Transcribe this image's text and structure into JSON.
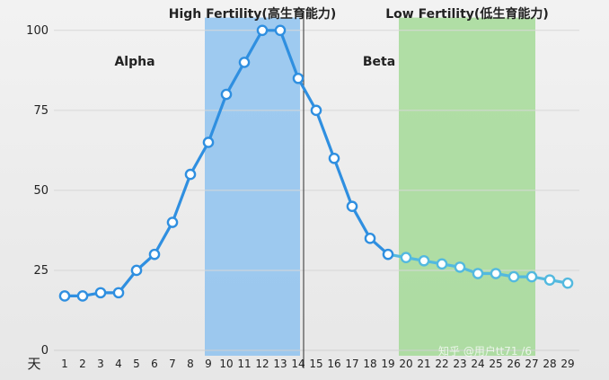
{
  "chart_data": {
    "type": "line",
    "x_unit_label": "天",
    "x": [
      1,
      2,
      3,
      4,
      5,
      6,
      7,
      8,
      9,
      10,
      11,
      12,
      13,
      14,
      15,
      16,
      17,
      18,
      19,
      20,
      21,
      22,
      23,
      24,
      25,
      26,
      27,
      28,
      29
    ],
    "series": [
      {
        "values": [
          17,
          17,
          18,
          18,
          25,
          30,
          40,
          55,
          65,
          80,
          90,
          100,
          100,
          85,
          75,
          60,
          45,
          35,
          30,
          29,
          28,
          27,
          26,
          24,
          24,
          23,
          23,
          22,
          21
        ],
        "color": "#2f8fe0"
      }
    ],
    "ylim": [
      0,
      105
    ],
    "yticks": [
      0,
      25,
      50,
      75,
      100
    ],
    "xlim": [
      0.7,
      29.4
    ],
    "grid": true,
    "bands": [
      {
        "label": "High Fertility(高生育能力)",
        "x_start": 8.8,
        "x_end": 14.1,
        "color": "#86bfef"
      },
      {
        "label": "Low Fertility(低生育能力)",
        "x_start": 19.6,
        "x_end": 27.2,
        "color": "#9ed88f"
      }
    ],
    "marker_line": {
      "x": 14.3,
      "color": "#3f3f3f"
    },
    "phase_labels": [
      {
        "text": "Alpha",
        "x": 4.9,
        "y": 89
      },
      {
        "text": "Beta",
        "x": 18.5,
        "y": 89
      }
    ],
    "color_change_after_index": 18,
    "early_color": "#2f8fe0",
    "late_color": "#53b9df",
    "watermark": "知乎 @用户tt71 /6"
  }
}
